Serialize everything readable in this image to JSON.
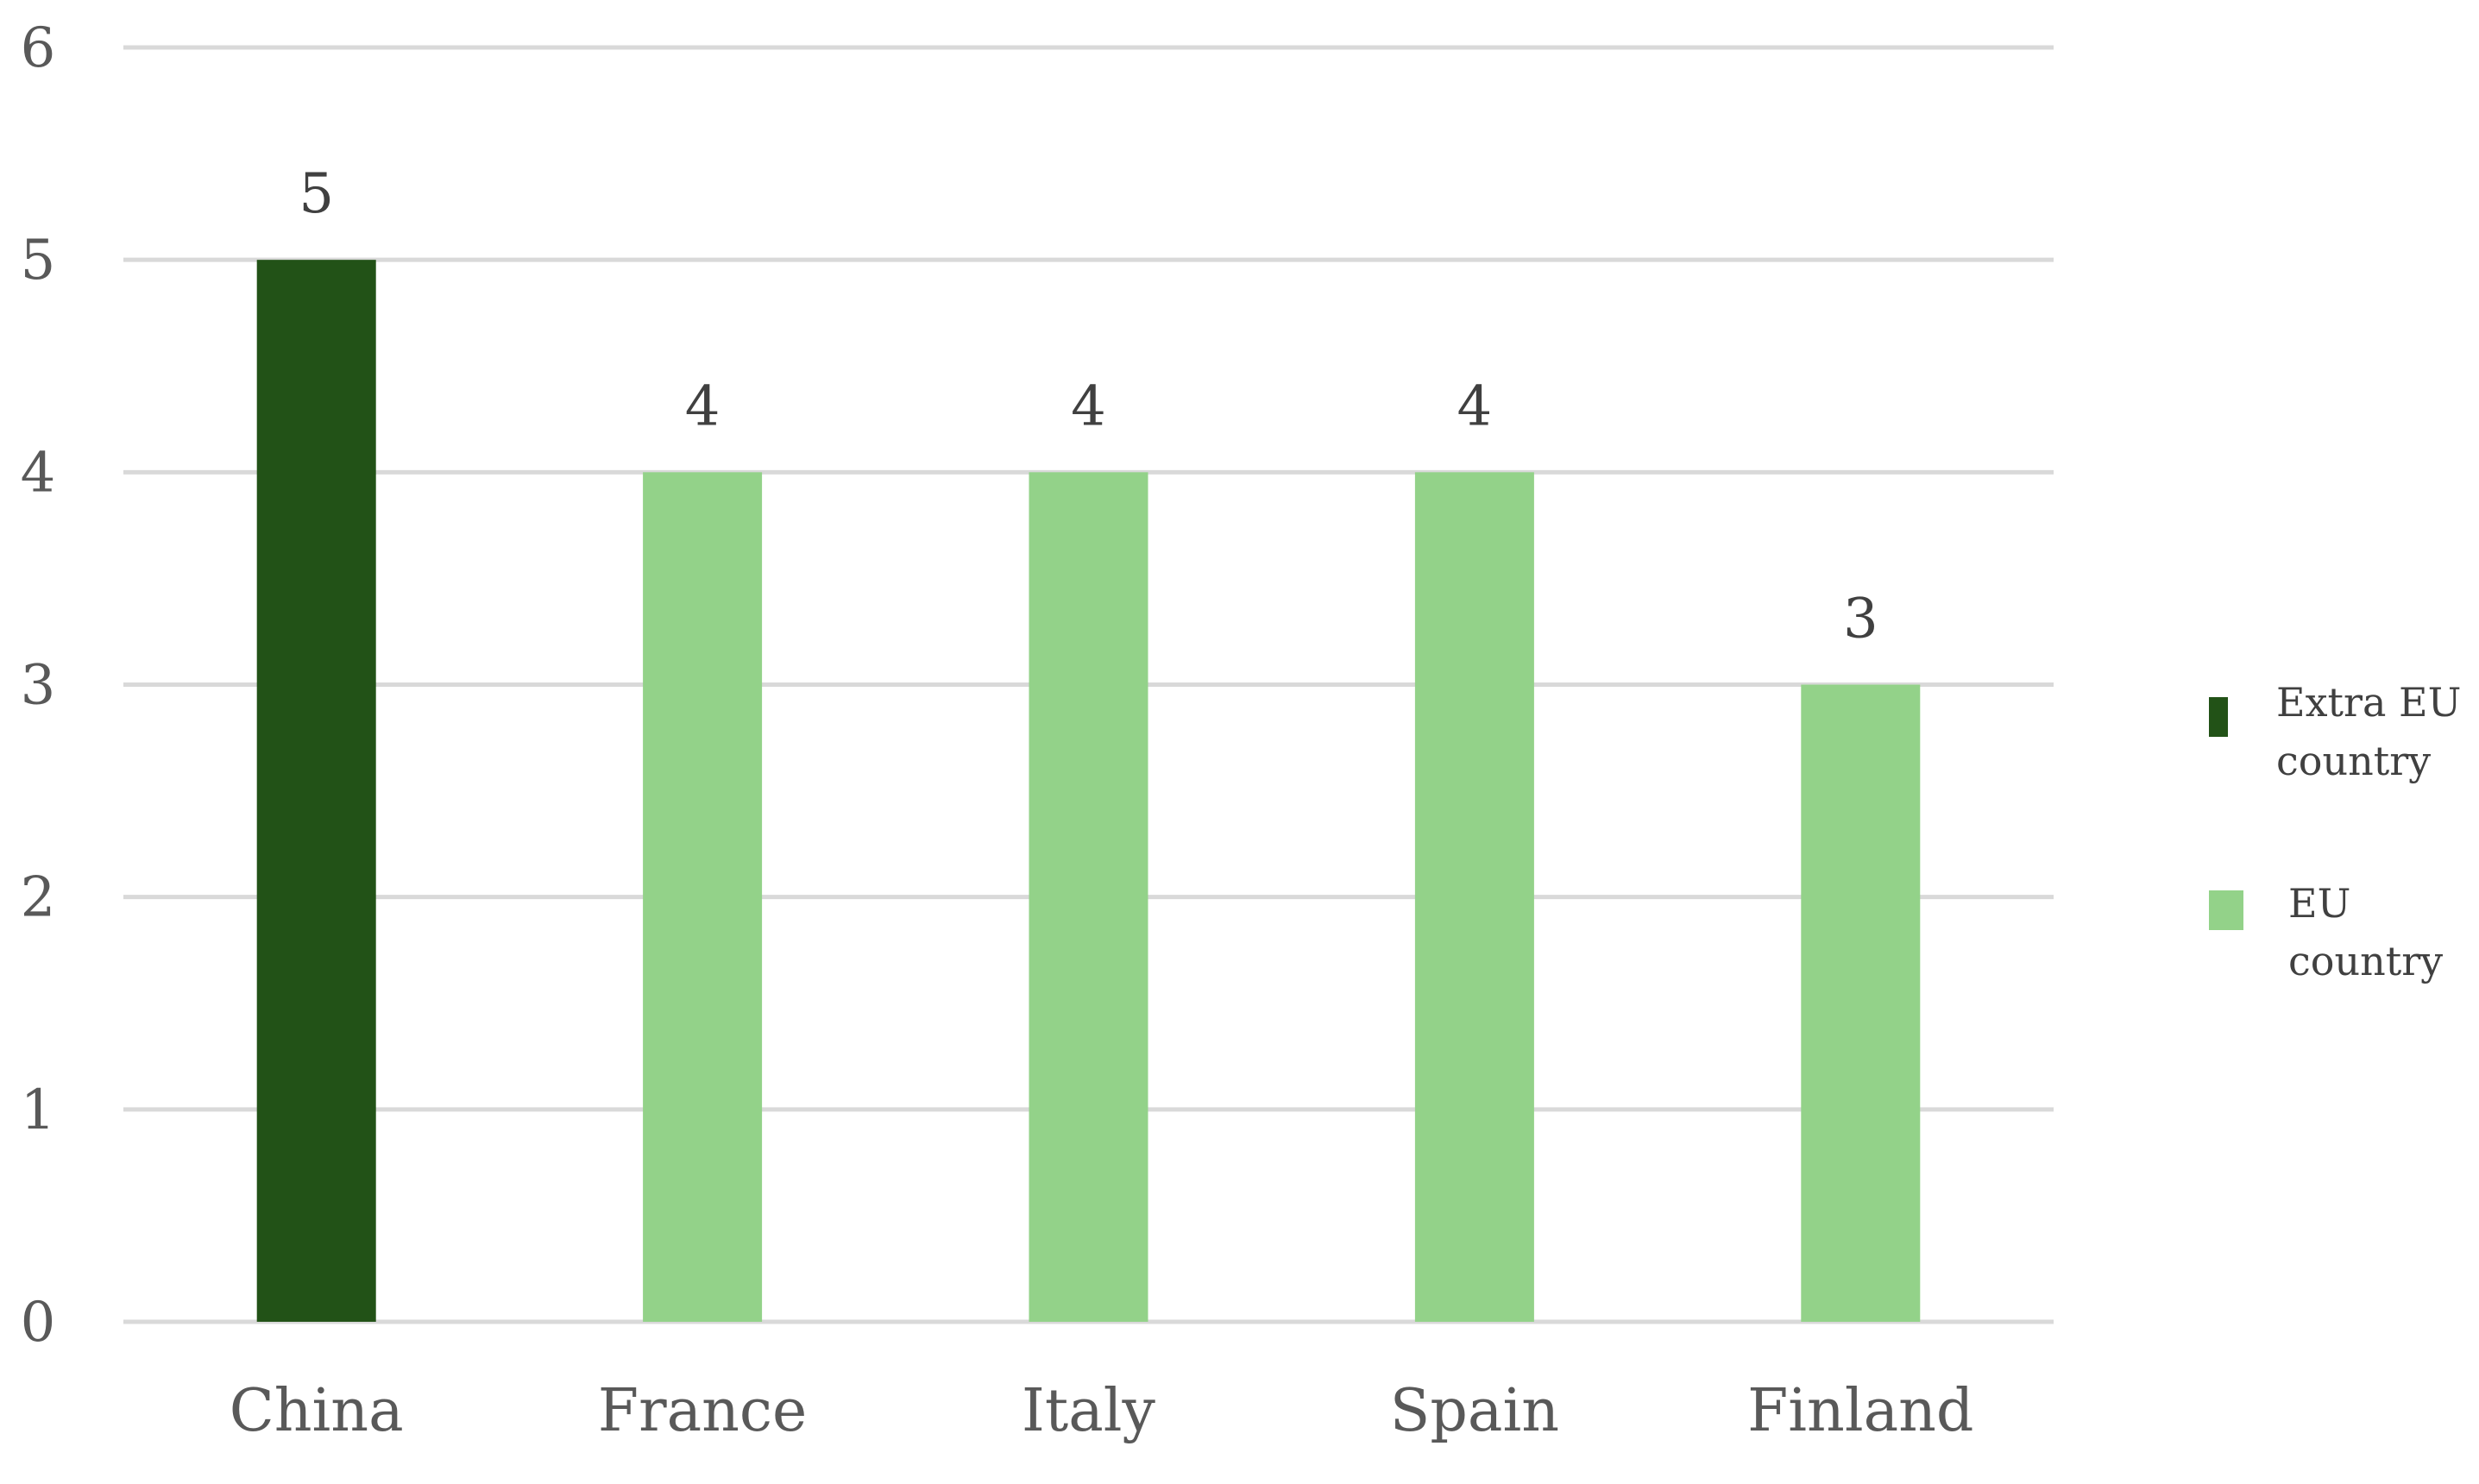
{
  "chart_data": {
    "type": "bar",
    "title": "",
    "xlabel": "",
    "ylabel": "",
    "categories": [
      "China",
      "France",
      "Italy",
      "Spain",
      "Finland"
    ],
    "values": [
      5,
      4,
      4,
      4,
      3
    ],
    "groups": [
      "Extra EU country",
      "EU country",
      "EU country",
      "EU country",
      "EU country"
    ],
    "ylim": [
      0,
      6
    ],
    "yticks": [
      "0",
      "1",
      "2",
      "3",
      "4",
      "5",
      "6"
    ],
    "grid": true,
    "data_labels": [
      "5",
      "4",
      "4",
      "4",
      "3"
    ],
    "legend": {
      "placement": "right",
      "entries": [
        {
          "label_lines": [
            "Extra EU",
            "country"
          ],
          "color": "#225217"
        },
        {
          "label_lines": [
            "EU",
            "country"
          ],
          "color": "#93d289"
        }
      ]
    },
    "colors": {
      "Extra EU country": "#225217",
      "EU country": "#93d289",
      "gridline": "#d9d9d9"
    }
  }
}
